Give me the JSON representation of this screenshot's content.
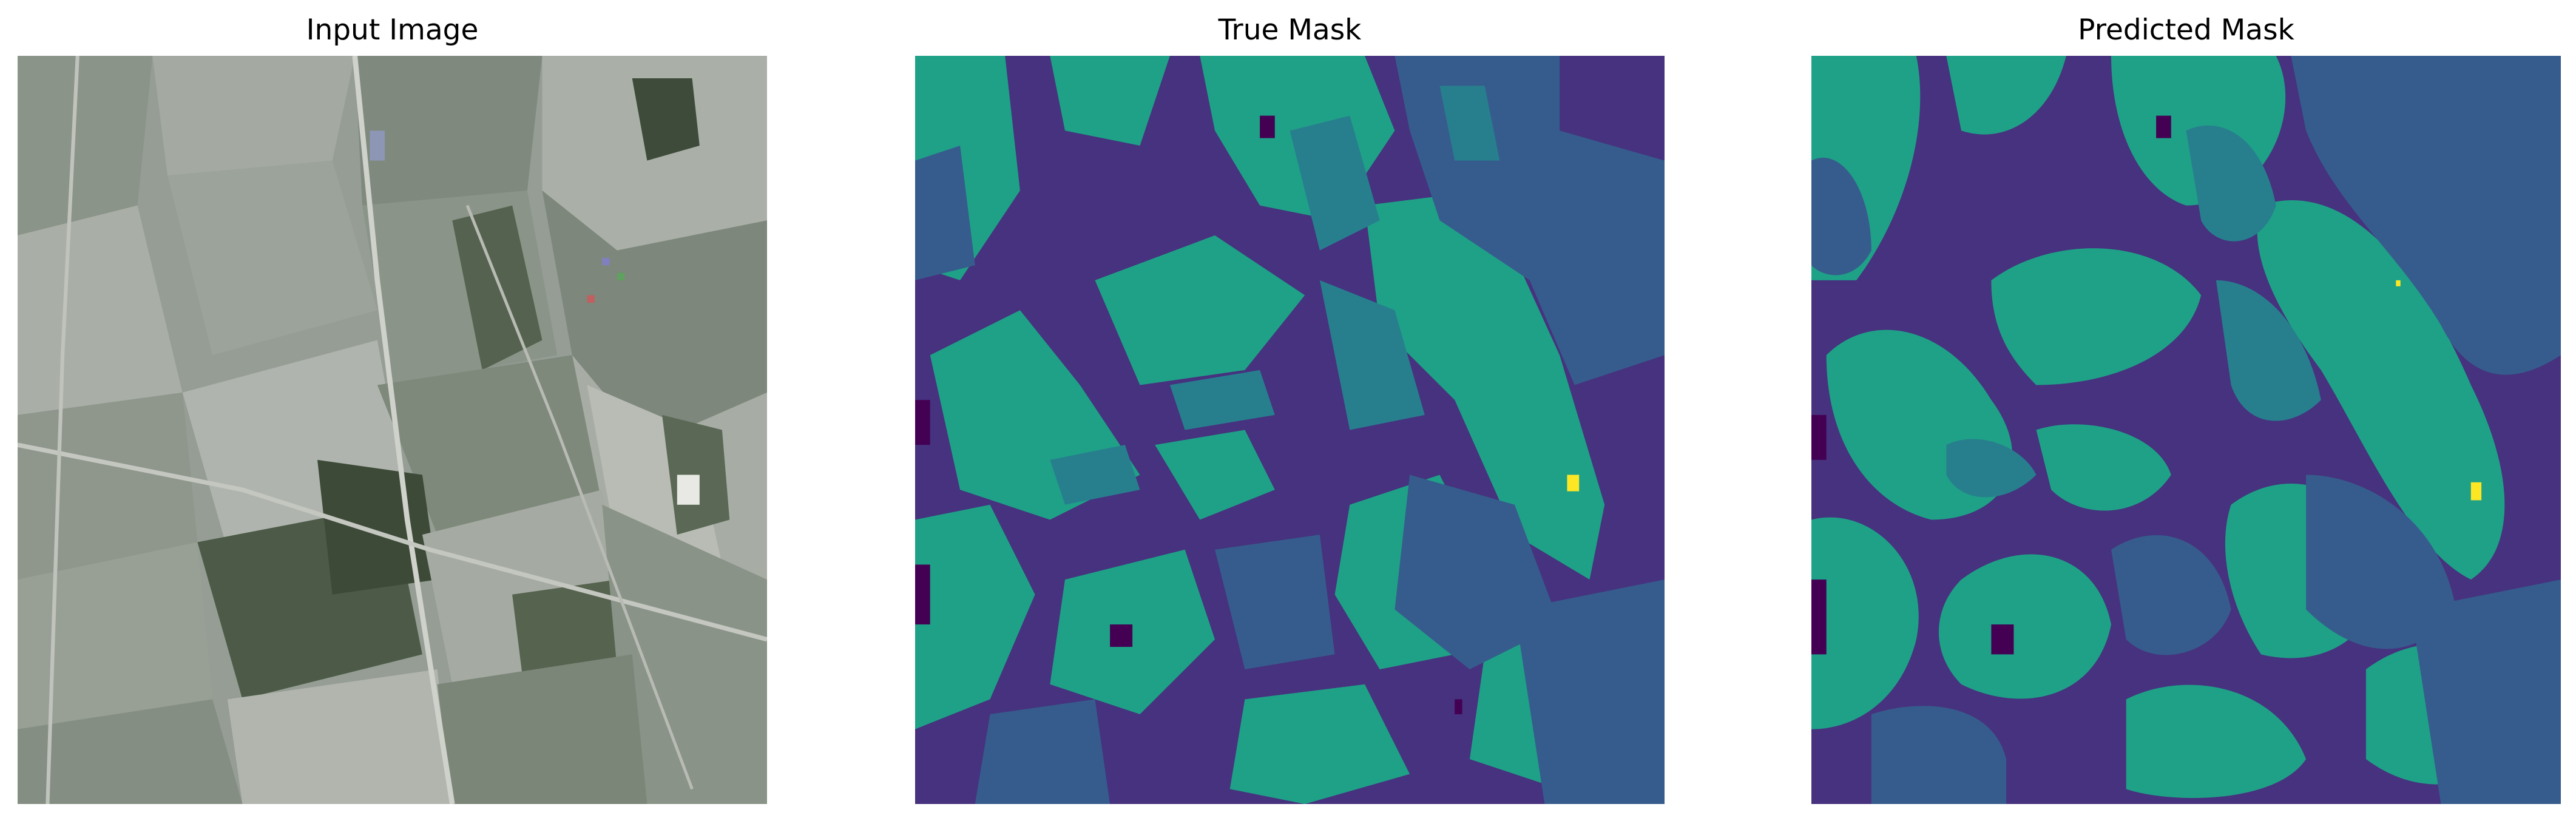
{
  "figure": {
    "panels": [
      {
        "title": "Input Image"
      },
      {
        "title": "True Mask"
      },
      {
        "title": "Predicted Mask"
      }
    ]
  },
  "palette": {
    "mask_classes": [
      "#440154",
      "#46327e",
      "#365c8d",
      "#277f8e",
      "#1fa187",
      "#fde725"
    ],
    "input_tones": [
      "#9aa39a",
      "#7f8a7e",
      "#aeb3ad",
      "#5d6a58",
      "#3f4d3a",
      "#c9cbc6",
      "#8e958a"
    ]
  }
}
